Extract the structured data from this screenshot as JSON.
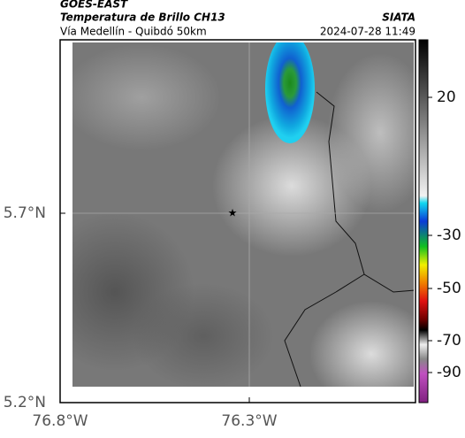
{
  "header": {
    "source": "GOES-EAST",
    "title": "Temperatura de Brillo CH13",
    "subtitle": "Vía Medellín - Quibdó 50km",
    "brand": "SIATA",
    "timestamp": "2024-07-28 11:49"
  },
  "map": {
    "lat_ticks": [
      "5.7°N",
      "5.2°N"
    ],
    "lon_ticks": [
      "76.8°W",
      "76.3°W"
    ]
  },
  "colorbar": {
    "ticks": [
      20,
      -30,
      -50,
      -70,
      -90
    ]
  }
}
